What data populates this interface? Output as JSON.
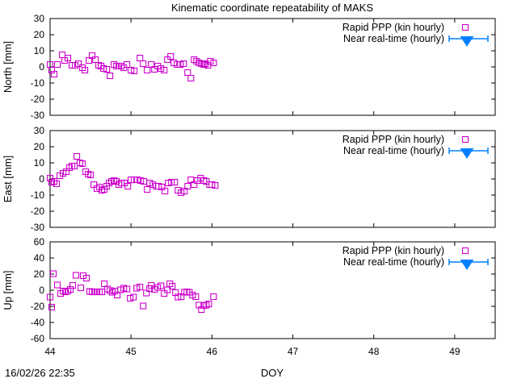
{
  "title": "Kinematic coordinate repeatability of MAKS",
  "timestamp": "16/02/26 22:35",
  "xlabel": "DOY",
  "colors": {
    "rapid_ppp": "#cc00cc",
    "near_real_time": "#0080ff",
    "frame": "#000000",
    "text": "#000000",
    "background": "#ffffff"
  },
  "legend": {
    "entries": [
      {
        "label": "Rapid PPP (kin hourly)",
        "marker": "magenta-open-square",
        "color": "#cc00cc"
      },
      {
        "label": "Near real-time (hourly)",
        "marker": "blue-filled-down-triangle-with-errorbar",
        "color": "#0080ff"
      }
    ]
  },
  "chart_data": [
    {
      "type": "scatter",
      "ylabel": "North [mm]",
      "ylim": [
        -30,
        30
      ],
      "yticks": [
        30,
        20,
        10,
        0,
        -10,
        -20,
        -30
      ],
      "xlim": [
        44,
        49.5
      ],
      "xticks": [
        44,
        45,
        46,
        47,
        48,
        49
      ],
      "grid": false,
      "legend_position": "top-right-inside",
      "series": [
        {
          "name": "Rapid PPP (kin hourly)",
          "marker": "open-square",
          "color": "#cc00cc",
          "points": [
            [
              44.0,
              1.5
            ],
            [
              44.02,
              -2
            ],
            [
              44.05,
              -4.5
            ],
            [
              44.09,
              1.5
            ],
            [
              44.15,
              7.5
            ],
            [
              44.18,
              4
            ],
            [
              44.22,
              5.5
            ],
            [
              44.27,
              1
            ],
            [
              44.31,
              1
            ],
            [
              44.35,
              2
            ],
            [
              44.4,
              -0.5
            ],
            [
              44.43,
              -2
            ],
            [
              44.48,
              4
            ],
            [
              44.52,
              7
            ],
            [
              44.56,
              4.5
            ],
            [
              44.6,
              1
            ],
            [
              44.63,
              0.5
            ],
            [
              44.66,
              -1
            ],
            [
              44.7,
              -1.5
            ],
            [
              44.74,
              -5.5
            ],
            [
              44.79,
              1.5
            ],
            [
              44.82,
              0.5
            ],
            [
              44.85,
              0.5
            ],
            [
              44.88,
              0.5
            ],
            [
              44.91,
              -0.5
            ],
            [
              44.95,
              1.5
            ],
            [
              45.0,
              -2
            ],
            [
              45.04,
              -2.5
            ],
            [
              45.11,
              5.5
            ],
            [
              45.15,
              2
            ],
            [
              45.2,
              -2
            ],
            [
              45.25,
              1.5
            ],
            [
              45.29,
              -1.5
            ],
            [
              45.33,
              0.5
            ],
            [
              45.37,
              -1
            ],
            [
              45.41,
              -2
            ],
            [
              45.45,
              4.5
            ],
            [
              45.49,
              6.5
            ],
            [
              45.53,
              2.5
            ],
            [
              45.57,
              1.5
            ],
            [
              45.61,
              1.5
            ],
            [
              45.65,
              2
            ],
            [
              45.7,
              -3.5
            ],
            [
              45.74,
              -7
            ],
            [
              45.78,
              4.5
            ],
            [
              45.81,
              3.5
            ],
            [
              45.84,
              2.5
            ],
            [
              45.87,
              2
            ],
            [
              45.9,
              1.5
            ],
            [
              45.92,
              2
            ],
            [
              45.95,
              1
            ],
            [
              45.98,
              3.5
            ],
            [
              46.02,
              2.5
            ]
          ]
        },
        {
          "name": "Near real-time (hourly)",
          "marker": "filled-down-triangle-errorbar",
          "color": "#0080ff",
          "points": []
        }
      ]
    },
    {
      "type": "scatter",
      "ylabel": "East [mm]",
      "ylim": [
        -30,
        30
      ],
      "yticks": [
        30,
        20,
        10,
        0,
        -10,
        -20,
        -30
      ],
      "xlim": [
        44,
        49.5
      ],
      "xticks": [
        44,
        45,
        46,
        47,
        48,
        49
      ],
      "grid": false,
      "legend_position": "top-right-inside",
      "series": [
        {
          "name": "Rapid PPP (kin hourly)",
          "marker": "open-square",
          "color": "#cc00cc",
          "points": [
            [
              44.0,
              0.5
            ],
            [
              44.02,
              -2
            ],
            [
              44.05,
              -1.5
            ],
            [
              44.08,
              -3
            ],
            [
              44.12,
              2
            ],
            [
              44.16,
              3.5
            ],
            [
              44.2,
              4.5
            ],
            [
              44.24,
              7
            ],
            [
              44.27,
              8
            ],
            [
              44.3,
              8
            ],
            [
              44.33,
              14
            ],
            [
              44.37,
              10
            ],
            [
              44.4,
              9.5
            ],
            [
              44.44,
              4.5
            ],
            [
              44.47,
              3
            ],
            [
              44.5,
              2.5
            ],
            [
              44.54,
              -3.5
            ],
            [
              44.58,
              -6
            ],
            [
              44.61,
              -5
            ],
            [
              44.64,
              -7
            ],
            [
              44.67,
              -6.5
            ],
            [
              44.7,
              -4.5
            ],
            [
              44.73,
              -2.5
            ],
            [
              44.76,
              -1.5
            ],
            [
              44.79,
              -1
            ],
            [
              44.82,
              -1.5
            ],
            [
              44.85,
              -3.5
            ],
            [
              44.88,
              -2.5
            ],
            [
              44.92,
              -2.5
            ],
            [
              44.96,
              -4.5
            ],
            [
              45.0,
              -0.5
            ],
            [
              45.04,
              -0.5
            ],
            [
              45.08,
              -0.5
            ],
            [
              45.12,
              -1
            ],
            [
              45.16,
              -1.5
            ],
            [
              45.2,
              -6.5
            ],
            [
              45.23,
              -2.5
            ],
            [
              45.27,
              -3.5
            ],
            [
              45.31,
              -4.5
            ],
            [
              45.34,
              -4.5
            ],
            [
              45.38,
              -5
            ],
            [
              45.42,
              -7.5
            ],
            [
              45.46,
              -2.5
            ],
            [
              45.5,
              -2
            ],
            [
              45.54,
              -2
            ],
            [
              45.58,
              -7
            ],
            [
              45.62,
              -8.5
            ],
            [
              45.66,
              -7.5
            ],
            [
              45.7,
              -4.5
            ],
            [
              45.74,
              -0.5
            ],
            [
              45.78,
              -3.5
            ],
            [
              45.82,
              -1
            ],
            [
              45.86,
              0.5
            ],
            [
              45.9,
              -1
            ],
            [
              45.93,
              -1.5
            ],
            [
              45.97,
              -3.5
            ],
            [
              46.0,
              -3.5
            ],
            [
              46.04,
              -4
            ]
          ]
        },
        {
          "name": "Near real-time (hourly)",
          "marker": "filled-down-triangle-errorbar",
          "color": "#0080ff",
          "points": []
        }
      ]
    },
    {
      "type": "scatter",
      "ylabel": "Up [mm]",
      "ylim": [
        -60,
        60
      ],
      "yticks": [
        60,
        40,
        20,
        0,
        -20,
        -40,
        -60
      ],
      "xlim": [
        44,
        49.5
      ],
      "xticks": [
        44,
        45,
        46,
        47,
        48,
        49
      ],
      "grid": false,
      "legend_position": "top-right-inside",
      "series": [
        {
          "name": "Rapid PPP (kin hourly)",
          "marker": "open-square",
          "color": "#cc00cc",
          "points": [
            [
              44.0,
              -8.5
            ],
            [
              44.02,
              -21
            ],
            [
              44.04,
              20.5
            ],
            [
              44.09,
              6.5
            ],
            [
              44.13,
              -4
            ],
            [
              44.16,
              -1
            ],
            [
              44.19,
              -2
            ],
            [
              44.22,
              -1
            ],
            [
              44.25,
              1
            ],
            [
              44.28,
              6
            ],
            [
              44.32,
              18.5
            ],
            [
              44.38,
              3
            ],
            [
              44.41,
              18
            ],
            [
              44.45,
              15
            ],
            [
              44.49,
              -1.5
            ],
            [
              44.52,
              -2
            ],
            [
              44.55,
              -2
            ],
            [
              44.58,
              -2
            ],
            [
              44.61,
              -2
            ],
            [
              44.64,
              -2
            ],
            [
              44.67,
              8
            ],
            [
              44.71,
              1.5
            ],
            [
              44.74,
              -0.5
            ],
            [
              44.77,
              -2.5
            ],
            [
              44.8,
              -1
            ],
            [
              44.83,
              -6
            ],
            [
              44.87,
              0.5
            ],
            [
              44.91,
              2.5
            ],
            [
              44.95,
              1.5
            ],
            [
              44.99,
              -10
            ],
            [
              45.03,
              -8.5
            ],
            [
              45.07,
              2.5
            ],
            [
              45.11,
              4
            ],
            [
              45.15,
              -19.5
            ],
            [
              45.19,
              -3.5
            ],
            [
              45.23,
              2
            ],
            [
              45.25,
              6
            ],
            [
              45.29,
              1
            ],
            [
              45.33,
              3.5
            ],
            [
              45.37,
              5.5
            ],
            [
              45.41,
              -4
            ],
            [
              45.45,
              0.5
            ],
            [
              45.48,
              8
            ],
            [
              45.51,
              5
            ],
            [
              45.55,
              -3
            ],
            [
              45.58,
              -8.5
            ],
            [
              45.62,
              -8
            ],
            [
              45.66,
              -2.5
            ],
            [
              45.69,
              -2
            ],
            [
              45.72,
              -2.5
            ],
            [
              45.76,
              -6
            ],
            [
              45.8,
              -8
            ],
            [
              45.84,
              -18.5
            ],
            [
              45.87,
              -24
            ],
            [
              45.9,
              -19
            ],
            [
              45.93,
              -18.5
            ],
            [
              45.96,
              -17
            ],
            [
              46.02,
              -8
            ]
          ]
        },
        {
          "name": "Near real-time (hourly)",
          "marker": "filled-down-triangle-errorbar",
          "color": "#0080ff",
          "points": []
        }
      ]
    }
  ]
}
